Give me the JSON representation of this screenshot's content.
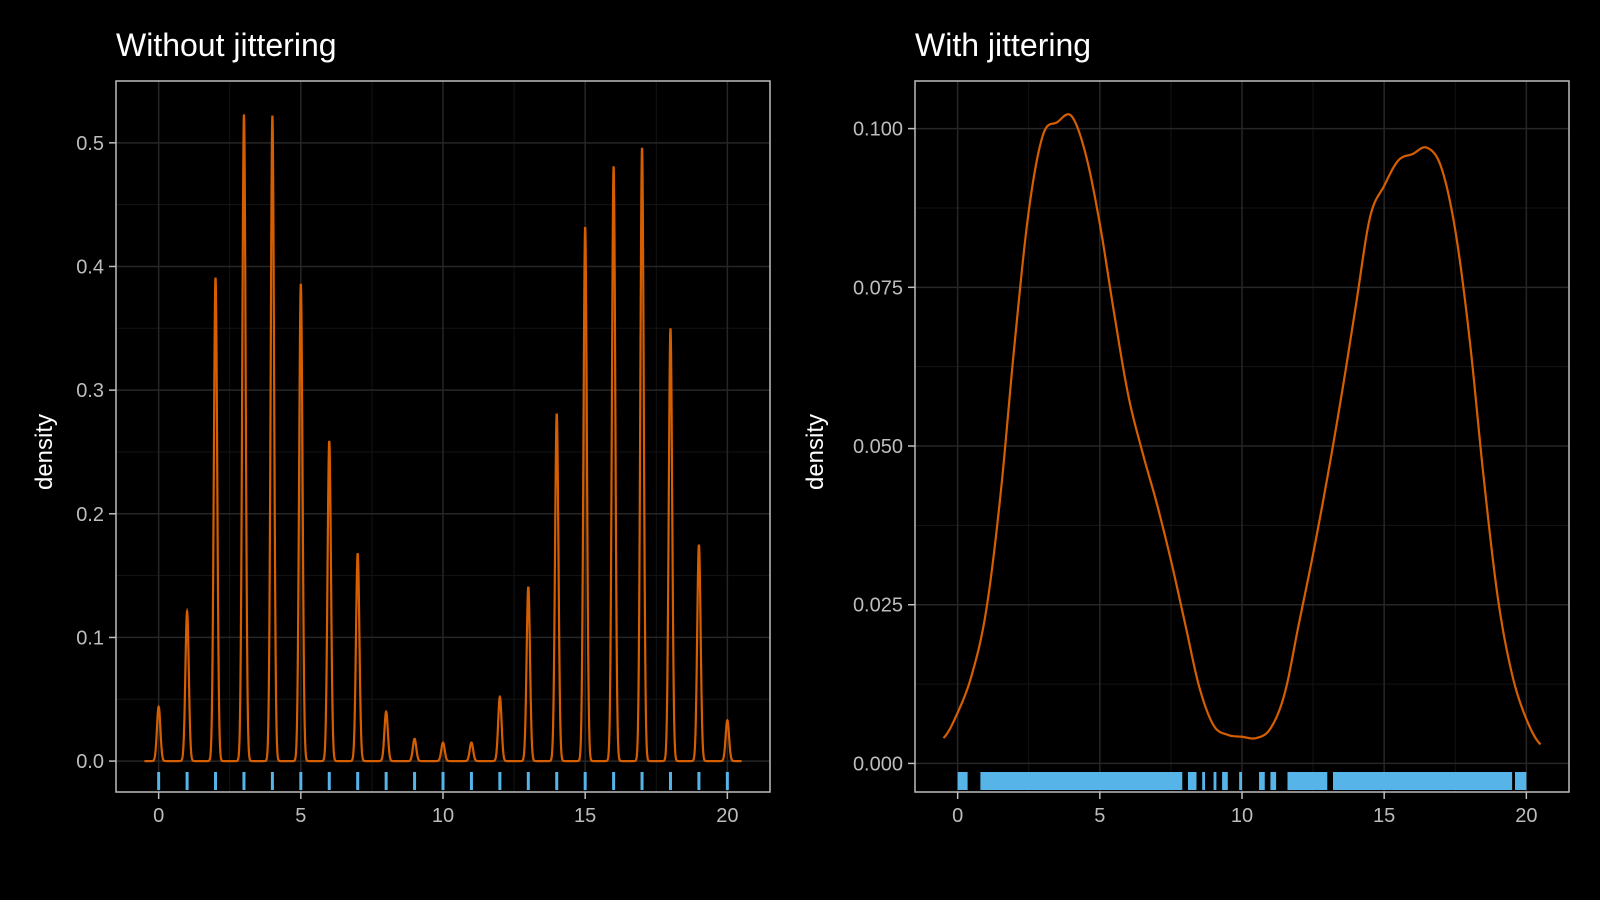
{
  "colors": {
    "background": "#000000",
    "density_line": "#d55e00",
    "rug": "#56b4e9",
    "panel_border": "#bdbdbd",
    "grid_major": "#262626",
    "grid_minor": "#141414",
    "text": "#ffffff",
    "tick_text": "#bdbdbd"
  },
  "chart_data": [
    {
      "type": "line",
      "title": "Without jittering",
      "xlabel": "",
      "ylabel": "density",
      "xlim": [
        -1.5,
        21.5
      ],
      "ylim": [
        -0.025,
        0.55
      ],
      "xticks": [
        0,
        5,
        10,
        15,
        20
      ],
      "yticks": [
        0.0,
        0.1,
        0.2,
        0.3,
        0.4,
        0.5
      ],
      "ytick_labels": [
        "0.0",
        "0.1",
        "0.2",
        "0.3",
        "0.4",
        "0.5"
      ],
      "grid": true,
      "series": [
        {
          "kind": "density",
          "peaks_x": [
            0,
            1,
            2,
            3,
            4,
            5,
            6,
            7,
            8,
            9,
            10,
            11,
            12,
            13,
            14,
            15,
            16,
            17,
            18,
            19,
            20
          ],
          "peaks_y": [
            0.044,
            0.121,
            0.391,
            0.523,
            0.522,
            0.386,
            0.259,
            0.168,
            0.04,
            0.018,
            0.015,
            0.015,
            0.052,
            0.141,
            0.281,
            0.432,
            0.481,
            0.496,
            0.35,
            0.175,
            0.033
          ],
          "x_range": [
            -0.5,
            20.5
          ]
        }
      ],
      "rug_x": [
        0,
        1,
        2,
        3,
        4,
        5,
        6,
        7,
        8,
        9,
        10,
        11,
        12,
        13,
        14,
        15,
        16,
        17,
        18,
        19,
        20
      ]
    },
    {
      "type": "line",
      "title": "With jittering",
      "xlabel": "",
      "ylabel": "density",
      "xlim": [
        -1.5,
        21.5
      ],
      "ylim": [
        -0.0045,
        0.1075
      ],
      "xticks": [
        0,
        5,
        10,
        15,
        20
      ],
      "yticks": [
        0.0,
        0.025,
        0.05,
        0.075,
        0.1
      ],
      "ytick_labels": [
        "0.000",
        "0.025",
        "0.050",
        "0.075",
        "0.100"
      ],
      "grid": true,
      "series": [
        {
          "kind": "density",
          "x": [
            -0.5,
            0,
            0.5,
            1,
            1.5,
            2,
            2.5,
            3,
            3.5,
            4,
            4.5,
            5,
            5.5,
            6,
            6.5,
            7,
            7.5,
            8,
            8.5,
            9,
            9.5,
            10,
            10.5,
            11,
            11.5,
            12,
            12.5,
            13,
            13.5,
            14,
            14.5,
            15,
            15.5,
            16,
            16.5,
            17,
            17.5,
            18,
            18.5,
            19,
            19.5,
            20,
            20.5
          ],
          "y": [
            0.004,
            0.008,
            0.014,
            0.024,
            0.042,
            0.066,
            0.087,
            0.099,
            0.101,
            0.102,
            0.096,
            0.085,
            0.071,
            0.058,
            0.049,
            0.041,
            0.032,
            0.022,
            0.012,
            0.006,
            0.0045,
            0.0042,
            0.004,
            0.0055,
            0.011,
            0.022,
            0.033,
            0.045,
            0.058,
            0.072,
            0.086,
            0.091,
            0.095,
            0.096,
            0.097,
            0.094,
            0.084,
            0.067,
            0.045,
            0.026,
            0.014,
            0.007,
            0.003
          ]
        }
      ],
      "rug_segments": [
        [
          0,
          0.35
        ],
        [
          0.8,
          7.9
        ],
        [
          8.1,
          8.4
        ],
        [
          8.6,
          8.7
        ],
        [
          9.0,
          9.1
        ],
        [
          9.3,
          9.5
        ],
        [
          9.9,
          10.0
        ],
        [
          10.6,
          10.8
        ],
        [
          11.0,
          11.2
        ],
        [
          11.6,
          13.0
        ],
        [
          13.2,
          19.5
        ],
        [
          19.6,
          20.0
        ]
      ]
    }
  ]
}
